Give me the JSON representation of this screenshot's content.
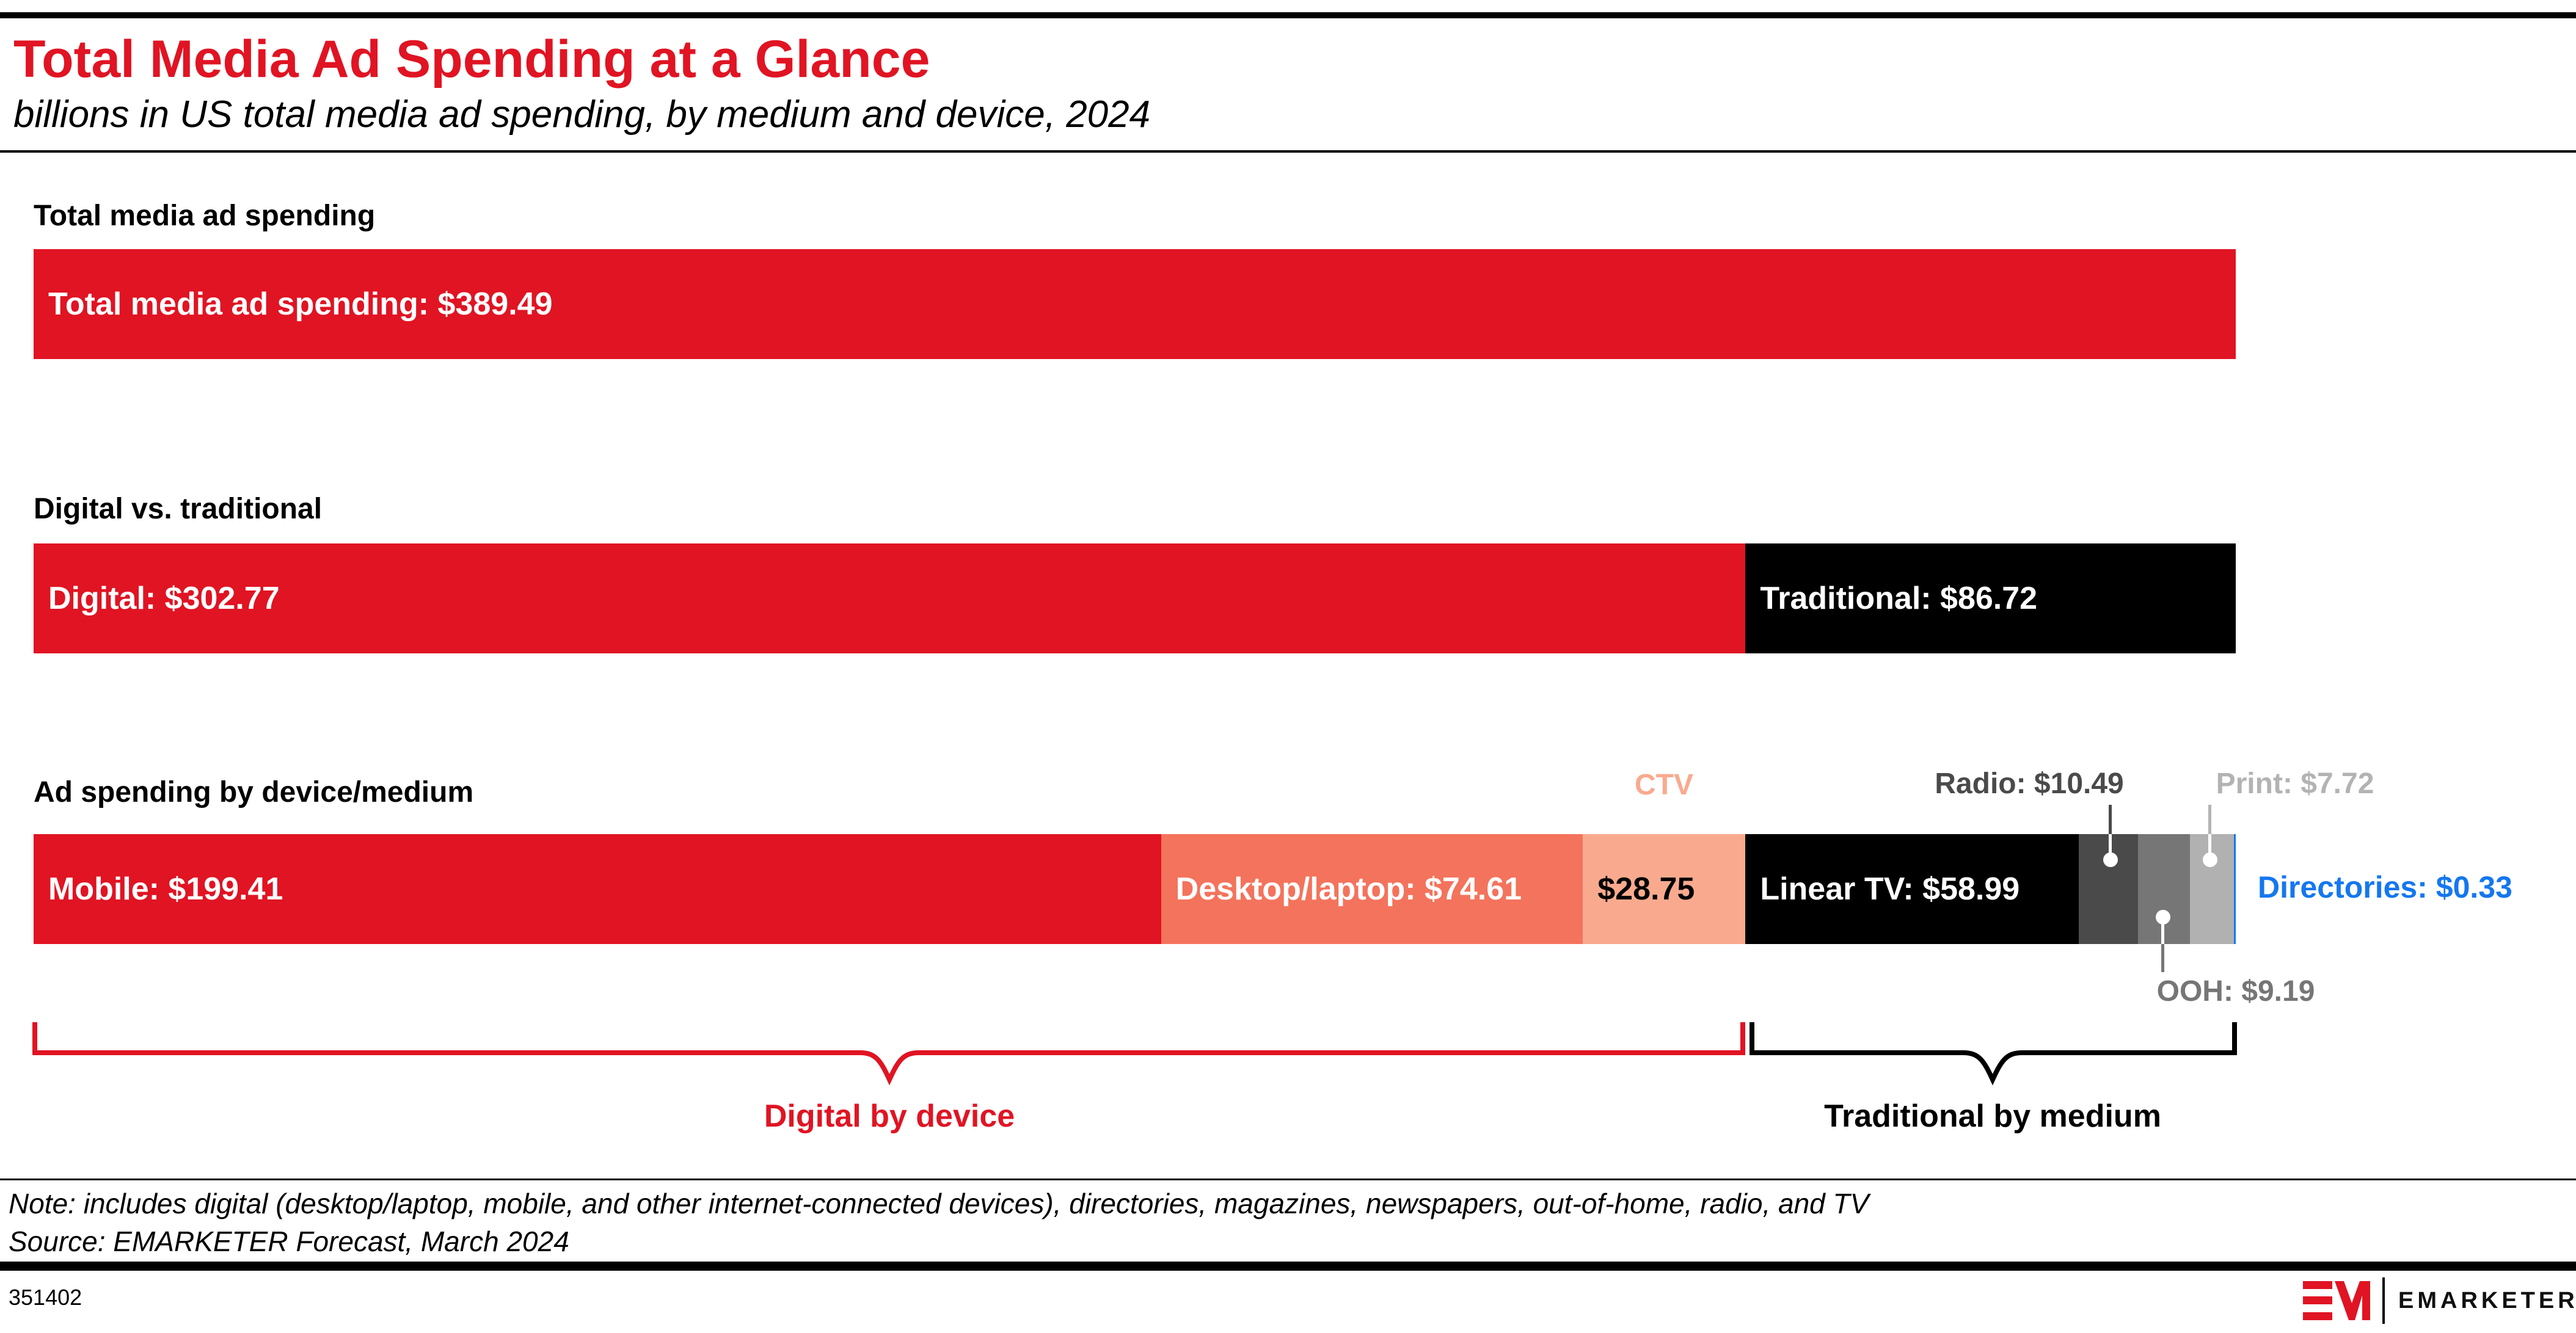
{
  "header": {
    "title": "Total Media Ad Spending at a Glance",
    "subtitle": "billions in US total media ad spending, by medium and device, 2024"
  },
  "colors": {
    "red": "#E01423",
    "salmon": "#F4735C",
    "light_salmon": "#F9AA8E",
    "black": "#000000",
    "dark_gray": "#4A4A4A",
    "mid_gray": "#767676",
    "light_gray": "#B1B1B1",
    "blue": "#1577F0"
  },
  "chart_data": {
    "type": "bar",
    "orientation": "horizontal-stacked",
    "unit": "billions of US dollars",
    "total": 389.49,
    "xlim": [
      0,
      389.49
    ],
    "rows": [
      {
        "section_label": "Total media ad spending",
        "segments": [
          {
            "name": "total-media",
            "label": "Total media ad spending: $389.49",
            "value": 389.49,
            "color": "#E01423",
            "text_color": "#FFFFFF"
          }
        ]
      },
      {
        "section_label": "Digital vs. traditional",
        "segments": [
          {
            "name": "digital",
            "label": "Digital: $302.77",
            "value": 302.77,
            "color": "#E01423",
            "text_color": "#FFFFFF"
          },
          {
            "name": "traditional",
            "label": "Traditional: $86.72",
            "value": 86.72,
            "color": "#000000",
            "text_color": "#FFFFFF"
          }
        ]
      },
      {
        "section_label": "Ad spending by device/medium",
        "segments": [
          {
            "name": "mobile",
            "label": "Mobile: $199.41",
            "value": 199.41,
            "color": "#E01423",
            "text_color": "#FFFFFF"
          },
          {
            "name": "desktop-laptop",
            "label": "Desktop/laptop: $74.61",
            "value": 74.61,
            "color": "#F4735C",
            "text_color": "#FFFFFF"
          },
          {
            "name": "ctv",
            "label": "$28.75",
            "value": 28.75,
            "color": "#F9AA8E",
            "text_color": "#000000"
          },
          {
            "name": "linear-tv",
            "label": "Linear TV: $58.99",
            "value": 58.99,
            "color": "#000000",
            "text_color": "#FFFFFF"
          },
          {
            "name": "radio",
            "label": "",
            "value": 10.49,
            "color": "#4A4A4A",
            "text_color": "#FFFFFF"
          },
          {
            "name": "ooh",
            "label": "",
            "value": 9.19,
            "color": "#767676",
            "text_color": "#FFFFFF"
          },
          {
            "name": "print",
            "label": "",
            "value": 7.72,
            "color": "#B1B1B1",
            "text_color": "#000000"
          },
          {
            "name": "directories",
            "label": "",
            "value": 0.33,
            "color": "#1577F0",
            "text_color": "#FFFFFF"
          }
        ]
      }
    ],
    "annotations": {
      "ctv": {
        "label": "CTV",
        "value": 28.75
      },
      "radio": {
        "label": "Radio: $10.49",
        "value": 10.49
      },
      "print": {
        "label": "Print: $7.72",
        "value": 7.72
      },
      "ooh": {
        "label": "OOH: $9.19",
        "value": 9.19
      },
      "directories": {
        "label": "Directories: $0.33",
        "value": 0.33
      }
    },
    "braces": {
      "digital": {
        "label": "Digital by device"
      },
      "traditional": {
        "label": "Traditional by medium"
      }
    }
  },
  "footer": {
    "note": "Note: includes digital (desktop/laptop, mobile, and other internet-connected devices), directories, magazines, newspapers, out-of-home, radio, and TV",
    "source": "Source: EMARKETER Forecast, March 2024",
    "chart_id": "351402",
    "brand": "EMARKETER"
  }
}
